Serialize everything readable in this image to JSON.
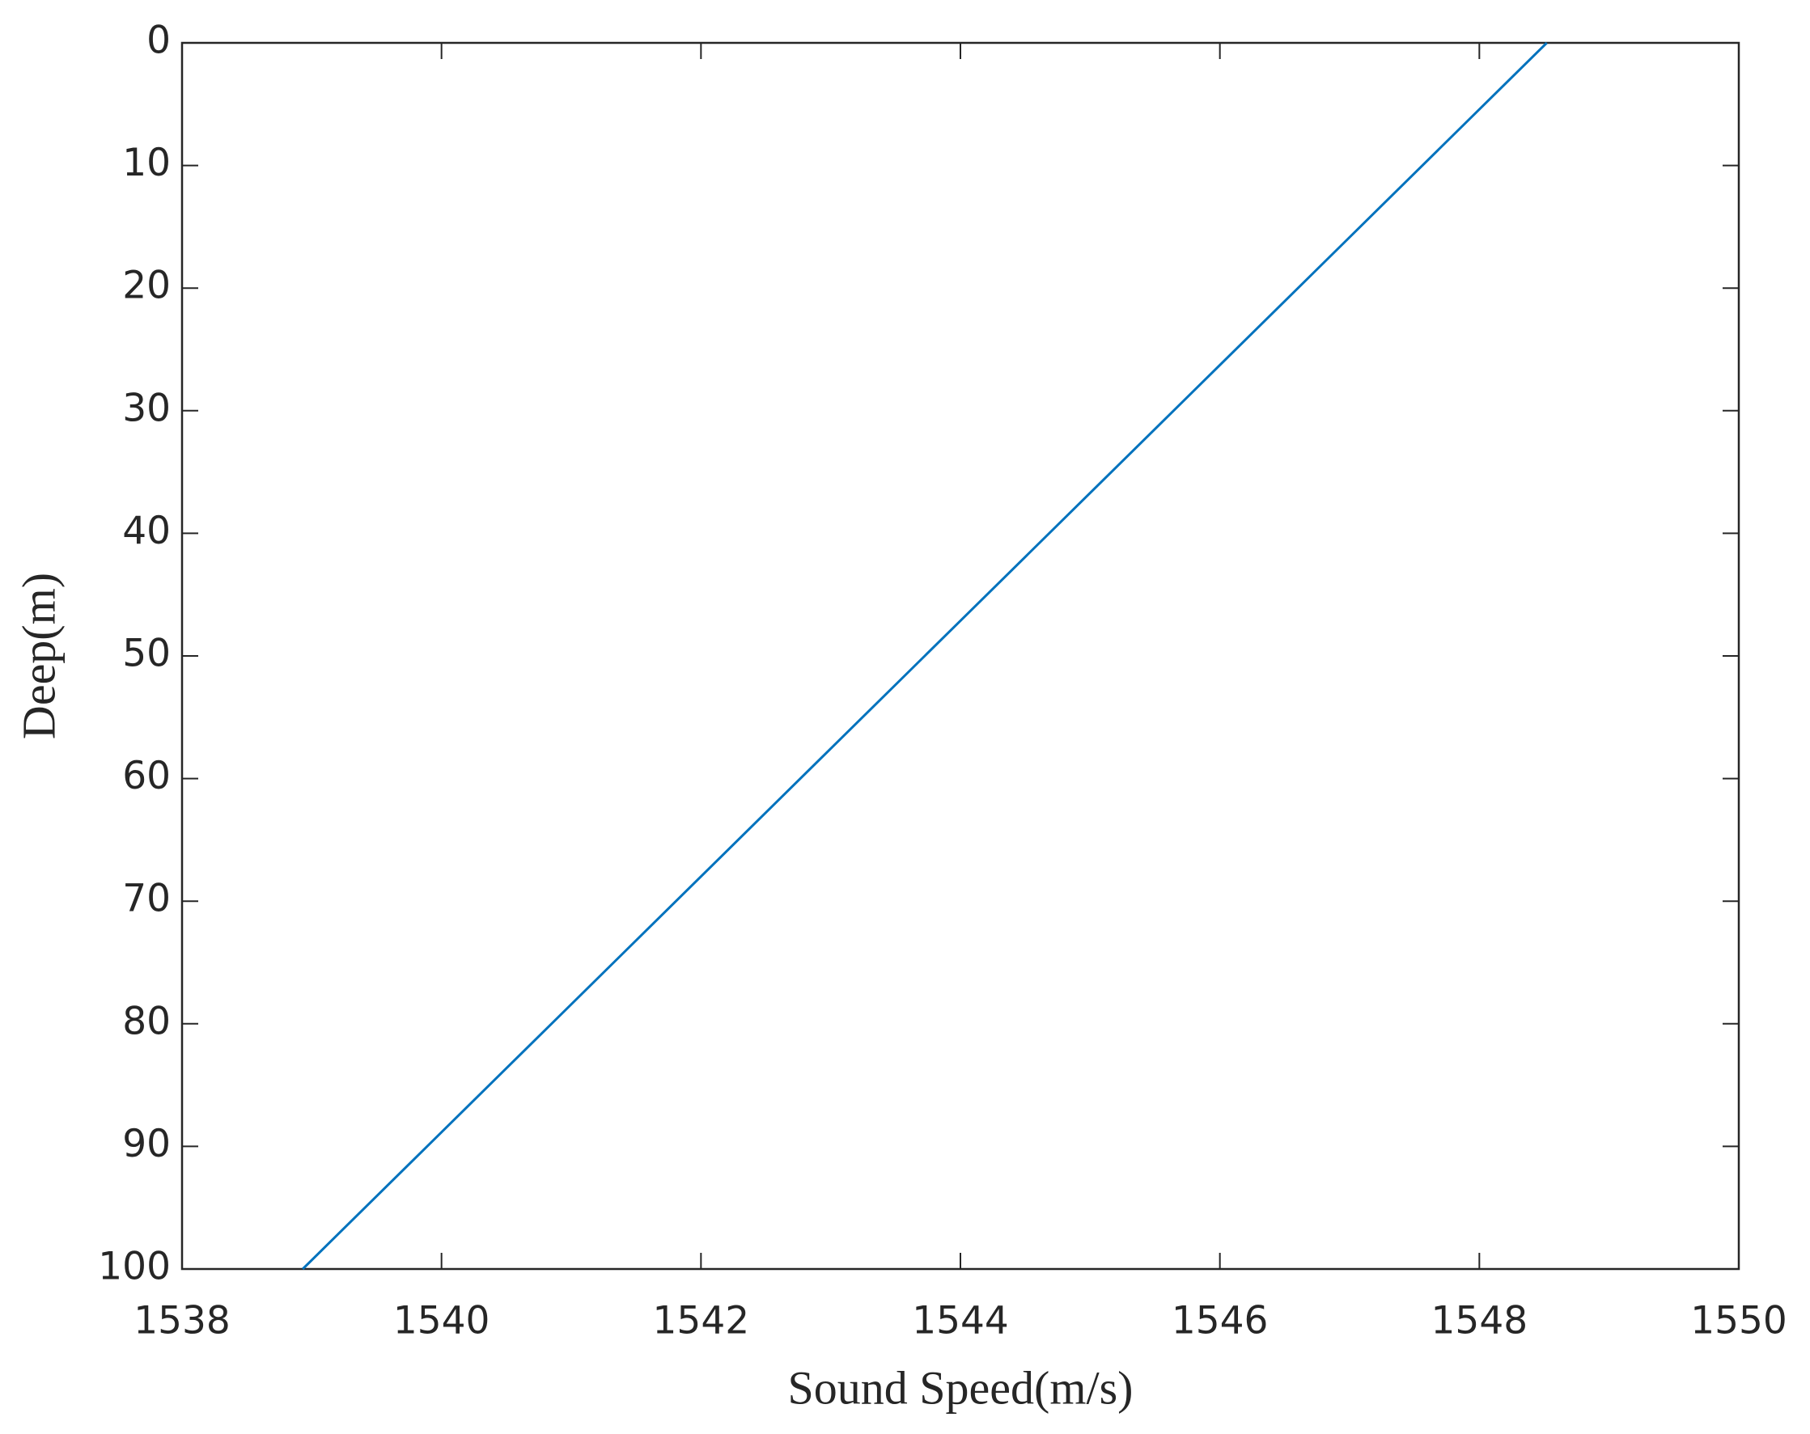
{
  "chart_data": {
    "type": "line",
    "x_label": "Sound Speed(m/s)",
    "y_label": "Deep(m)",
    "x": [
      1548.52,
      1538.93
    ],
    "series": [
      {
        "color": "#0072bd",
        "values": [
          0,
          100
        ]
      }
    ],
    "xlim": [
      1538,
      1550
    ],
    "xticks": [
      1538,
      1540,
      1542,
      1544,
      1546,
      1548,
      1550
    ],
    "ylim": [
      0,
      100
    ],
    "yticks": [
      0,
      10,
      20,
      30,
      40,
      50,
      60,
      70,
      80,
      90,
      100
    ],
    "y_reversed": true,
    "grid": false,
    "box": true
  }
}
